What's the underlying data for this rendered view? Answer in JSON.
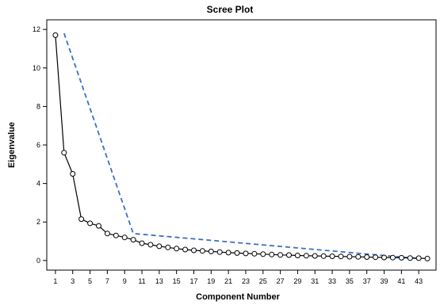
{
  "chart_data": {
    "type": "line",
    "title": "Scree Plot",
    "xlabel": "Component Number",
    "ylabel": "Eigenvalue",
    "xlim": [
      0,
      45
    ],
    "ylim": [
      -0.5,
      12.5
    ],
    "x_ticks": [
      1,
      3,
      5,
      7,
      9,
      11,
      13,
      15,
      17,
      19,
      21,
      23,
      25,
      27,
      29,
      31,
      33,
      35,
      37,
      39,
      41,
      43
    ],
    "y_ticks": [
      0,
      2,
      4,
      6,
      8,
      10,
      12
    ],
    "grid": false,
    "series": [
      {
        "x": [
          1,
          2,
          3,
          4,
          5,
          6,
          7,
          8,
          9,
          10,
          11,
          12,
          13,
          14,
          15,
          16,
          17,
          18,
          19,
          20,
          21,
          22,
          23,
          24,
          25,
          26,
          27,
          28,
          29,
          30,
          31,
          32,
          33,
          34,
          35,
          36,
          37,
          38,
          39,
          40,
          41,
          42,
          43,
          44
        ],
        "values": [
          11.7,
          5.6,
          4.5,
          2.15,
          1.93,
          1.8,
          1.4,
          1.3,
          1.2,
          1.08,
          0.9,
          0.82,
          0.74,
          0.68,
          0.62,
          0.57,
          0.53,
          0.5,
          0.47,
          0.44,
          0.41,
          0.39,
          0.37,
          0.35,
          0.33,
          0.31,
          0.29,
          0.28,
          0.26,
          0.25,
          0.24,
          0.23,
          0.22,
          0.21,
          0.2,
          0.19,
          0.18,
          0.17,
          0.16,
          0.15,
          0.14,
          0.13,
          0.12,
          0.1
        ],
        "color": "#000000"
      }
    ],
    "annotation_line": {
      "x": [
        2,
        10,
        43
      ],
      "values": [
        11.8,
        1.4,
        0.1
      ],
      "color": "#3a6fc4",
      "style": "dashed"
    }
  }
}
